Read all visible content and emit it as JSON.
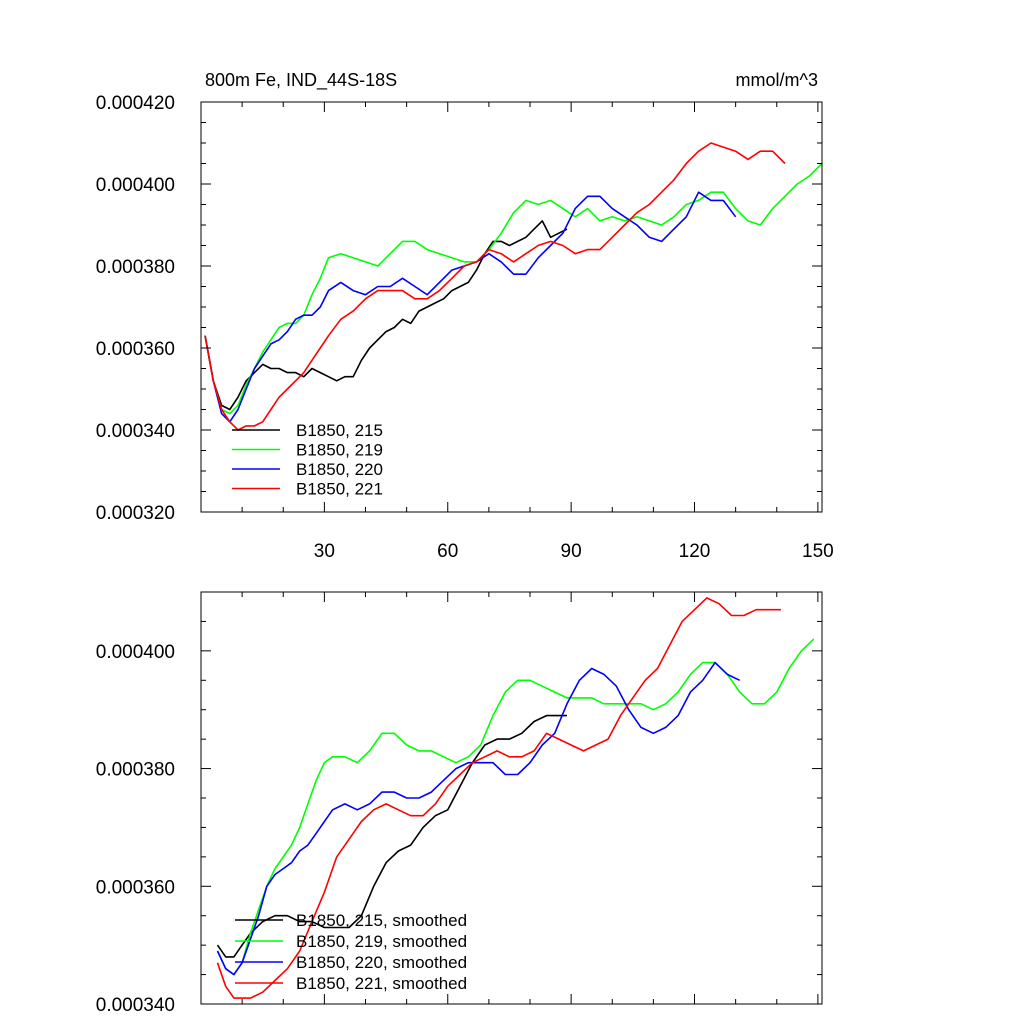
{
  "chart_data": [
    {
      "type": "line",
      "title": "800m Fe, IND_44S-18S",
      "units": "mmol/m^3",
      "xlim": [
        0,
        151
      ],
      "ylim": [
        0.00032,
        0.00042
      ],
      "xticks": [
        30,
        60,
        90,
        120,
        150
      ],
      "xtick_labels": [
        "30",
        "60",
        "90",
        "120",
        "150"
      ],
      "yticks": [
        0.00032,
        0.00034,
        0.00036,
        0.00038,
        0.0004,
        0.00042
      ],
      "ytick_labels": [
        "0.000320",
        "0.000340",
        "0.000360",
        "0.000380",
        "0.000400",
        "0.000420"
      ],
      "grid": false,
      "legend_position": "bottom-left",
      "series": [
        {
          "name": "B1850, 215",
          "color": "#000000",
          "x": [
            1,
            3,
            5,
            7,
            9,
            11,
            13,
            15,
            17,
            19,
            21,
            23,
            25,
            27,
            29,
            31,
            33,
            35,
            37,
            39,
            41,
            43,
            45,
            47,
            49,
            51,
            53,
            55,
            57,
            59,
            61,
            63,
            65,
            67,
            69,
            71,
            73,
            75,
            77,
            79,
            81,
            83,
            85,
            87,
            89
          ],
          "y": [
            0.000363,
            0.000352,
            0.000346,
            0.000345,
            0.000348,
            0.000352,
            0.000354,
            0.000356,
            0.000355,
            0.000355,
            0.000354,
            0.000354,
            0.000353,
            0.000355,
            0.000354,
            0.000353,
            0.000352,
            0.000353,
            0.000353,
            0.000357,
            0.00036,
            0.000362,
            0.000364,
            0.000365,
            0.000367,
            0.000366,
            0.000369,
            0.00037,
            0.000371,
            0.000372,
            0.000374,
            0.000375,
            0.000376,
            0.000379,
            0.000383,
            0.000386,
            0.000386,
            0.000385,
            0.000386,
            0.000387,
            0.000389,
            0.000391,
            0.000387,
            0.000388,
            0.000389
          ]
        },
        {
          "name": "B1850, 219",
          "color": "#00ff00",
          "x": [
            1,
            3,
            5,
            7,
            9,
            11,
            13,
            15,
            17,
            19,
            21,
            23,
            25,
            27,
            29,
            31,
            34,
            37,
            40,
            43,
            46,
            49,
            52,
            55,
            58,
            61,
            64,
            67,
            70,
            73,
            76,
            79,
            82,
            85,
            88,
            91,
            94,
            97,
            100,
            103,
            106,
            109,
            112,
            115,
            118,
            121,
            124,
            127,
            130,
            133,
            136,
            139,
            142,
            145,
            148,
            151
          ],
          "y": [
            0.000363,
            0.000352,
            0.000345,
            0.000344,
            0.000346,
            0.000351,
            0.000355,
            0.000359,
            0.000362,
            0.000365,
            0.000366,
            0.000366,
            0.000368,
            0.000373,
            0.000377,
            0.000382,
            0.000383,
            0.000382,
            0.000381,
            0.00038,
            0.000383,
            0.000386,
            0.000386,
            0.000384,
            0.000383,
            0.000382,
            0.000381,
            0.000381,
            0.000384,
            0.000388,
            0.000393,
            0.000396,
            0.000395,
            0.000396,
            0.000394,
            0.000392,
            0.000394,
            0.000391,
            0.000392,
            0.000391,
            0.000392,
            0.000391,
            0.00039,
            0.000392,
            0.000395,
            0.000396,
            0.000398,
            0.000398,
            0.000394,
            0.000391,
            0.00039,
            0.000394,
            0.000397,
            0.0004,
            0.000402,
            0.000405
          ]
        },
        {
          "name": "B1850, 220",
          "color": "#0000ff",
          "x": [
            1,
            3,
            5,
            7,
            9,
            11,
            13,
            15,
            17,
            19,
            21,
            23,
            25,
            27,
            29,
            31,
            34,
            37,
            40,
            43,
            46,
            49,
            52,
            55,
            58,
            61,
            64,
            67,
            70,
            73,
            76,
            79,
            82,
            85,
            88,
            91,
            94,
            97,
            100,
            103,
            106,
            109,
            112,
            115,
            118,
            121,
            124,
            127,
            130
          ],
          "y": [
            0.000363,
            0.000352,
            0.000344,
            0.000342,
            0.000345,
            0.00035,
            0.000355,
            0.000358,
            0.000361,
            0.000362,
            0.000364,
            0.000367,
            0.000368,
            0.000368,
            0.00037,
            0.000374,
            0.000376,
            0.000374,
            0.000373,
            0.000375,
            0.000375,
            0.000377,
            0.000375,
            0.000373,
            0.000376,
            0.000379,
            0.00038,
            0.000381,
            0.000383,
            0.000381,
            0.000378,
            0.000378,
            0.000382,
            0.000385,
            0.000388,
            0.000394,
            0.000397,
            0.000397,
            0.000394,
            0.000392,
            0.00039,
            0.000387,
            0.000386,
            0.000389,
            0.000392,
            0.000398,
            0.000396,
            0.000396,
            0.000392
          ]
        },
        {
          "name": "B1850, 221",
          "color": "#ff0000",
          "x": [
            1,
            3,
            5,
            7,
            9,
            11,
            13,
            15,
            17,
            19,
            21,
            23,
            25,
            27,
            29,
            31,
            34,
            37,
            40,
            43,
            46,
            49,
            52,
            55,
            58,
            61,
            64,
            67,
            70,
            73,
            76,
            79,
            82,
            85,
            88,
            91,
            94,
            97,
            100,
            103,
            106,
            109,
            112,
            115,
            118,
            121,
            124,
            127,
            130,
            133,
            136,
            139,
            142
          ],
          "y": [
            0.000363,
            0.000352,
            0.000345,
            0.000342,
            0.00034,
            0.000341,
            0.000341,
            0.000342,
            0.000345,
            0.000348,
            0.00035,
            0.000352,
            0.000354,
            0.000357,
            0.00036,
            0.000363,
            0.000367,
            0.000369,
            0.000372,
            0.000374,
            0.000374,
            0.000374,
            0.000372,
            0.000372,
            0.000374,
            0.000377,
            0.00038,
            0.000381,
            0.000384,
            0.000383,
            0.000381,
            0.000383,
            0.000385,
            0.000386,
            0.000385,
            0.000383,
            0.000384,
            0.000384,
            0.000387,
            0.00039,
            0.000393,
            0.000395,
            0.000398,
            0.000401,
            0.000405,
            0.000408,
            0.00041,
            0.000409,
            0.000408,
            0.000406,
            0.000408,
            0.000408,
            0.000405
          ]
        }
      ]
    },
    {
      "type": "line",
      "xlim": [
        0,
        151
      ],
      "ylim": [
        0.00034,
        0.00041
      ],
      "yticks": [
        0.00034,
        0.00036,
        0.00038,
        0.0004
      ],
      "ytick_labels": [
        "0.000340",
        "0.000360",
        "0.000380",
        "0.000400"
      ],
      "xticks": [
        30,
        60,
        90,
        120,
        150
      ],
      "grid": false,
      "legend_position": "bottom-left",
      "series": [
        {
          "name": "B1850, 215, smoothed",
          "color": "#000000",
          "x": [
            4,
            6,
            8,
            10,
            12,
            15,
            18,
            21,
            24,
            27,
            30,
            33,
            36,
            39,
            42,
            45,
            48,
            51,
            54,
            57,
            60,
            63,
            66,
            69,
            72,
            75,
            78,
            81,
            84,
            87,
            89
          ],
          "y": [
            0.00035,
            0.000348,
            0.000348,
            0.00035,
            0.000352,
            0.000354,
            0.000355,
            0.000355,
            0.000354,
            0.000354,
            0.000353,
            0.000353,
            0.000353,
            0.000355,
            0.00036,
            0.000364,
            0.000366,
            0.000367,
            0.00037,
            0.000372,
            0.000373,
            0.000377,
            0.000381,
            0.000384,
            0.000385,
            0.000385,
            0.000386,
            0.000388,
            0.000389,
            0.000389,
            0.000389
          ]
        },
        {
          "name": "B1850, 219, smoothed",
          "color": "#00ff00",
          "x": [
            4,
            6,
            8,
            10,
            12,
            14,
            16,
            18,
            20,
            22,
            24,
            26,
            28,
            30,
            32,
            35,
            38,
            41,
            44,
            47,
            50,
            53,
            56,
            59,
            62,
            65,
            68,
            71,
            74,
            77,
            80,
            83,
            86,
            89,
            92,
            95,
            98,
            101,
            104,
            107,
            110,
            113,
            116,
            119,
            122,
            125,
            128,
            131,
            134,
            137,
            140,
            143,
            146,
            149
          ],
          "y": [
            0.000349,
            0.000346,
            0.000345,
            0.000347,
            0.000352,
            0.000356,
            0.00036,
            0.000363,
            0.000365,
            0.000367,
            0.00037,
            0.000374,
            0.000378,
            0.000381,
            0.000382,
            0.000382,
            0.000381,
            0.000383,
            0.000386,
            0.000386,
            0.000384,
            0.000383,
            0.000383,
            0.000382,
            0.000381,
            0.000382,
            0.000384,
            0.000389,
            0.000393,
            0.000395,
            0.000395,
            0.000394,
            0.000393,
            0.000392,
            0.000392,
            0.000392,
            0.000391,
            0.000391,
            0.000391,
            0.000391,
            0.00039,
            0.000391,
            0.000393,
            0.000396,
            0.000398,
            0.000398,
            0.000396,
            0.000393,
            0.000391,
            0.000391,
            0.000393,
            0.000397,
            0.0004,
            0.000402
          ]
        },
        {
          "name": "B1850, 220, smoothed",
          "color": "#0000ff",
          "x": [
            4,
            6,
            8,
            10,
            12,
            14,
            16,
            18,
            20,
            22,
            24,
            26,
            28,
            30,
            32,
            35,
            38,
            41,
            44,
            47,
            50,
            53,
            56,
            59,
            62,
            65,
            68,
            71,
            74,
            77,
            80,
            83,
            86,
            89,
            92,
            95,
            98,
            101,
            104,
            107,
            110,
            113,
            116,
            119,
            122,
            125,
            128,
            131
          ],
          "y": [
            0.000349,
            0.000346,
            0.000345,
            0.000347,
            0.000351,
            0.000355,
            0.00036,
            0.000362,
            0.000363,
            0.000364,
            0.000366,
            0.000367,
            0.000369,
            0.000371,
            0.000373,
            0.000374,
            0.000373,
            0.000374,
            0.000376,
            0.000376,
            0.000375,
            0.000375,
            0.000376,
            0.000378,
            0.00038,
            0.000381,
            0.000381,
            0.000381,
            0.000379,
            0.000379,
            0.000381,
            0.000384,
            0.000386,
            0.000391,
            0.000395,
            0.000397,
            0.000396,
            0.000394,
            0.00039,
            0.000387,
            0.000386,
            0.000387,
            0.000389,
            0.000393,
            0.000395,
            0.000398,
            0.000396,
            0.000395
          ]
        },
        {
          "name": "B1850, 221, smoothed",
          "color": "#ff0000",
          "x": [
            4,
            6,
            8,
            10,
            12,
            15,
            18,
            21,
            24,
            27,
            30,
            33,
            36,
            39,
            42,
            45,
            48,
            51,
            54,
            57,
            60,
            63,
            66,
            69,
            72,
            75,
            78,
            81,
            84,
            87,
            90,
            93,
            96,
            99,
            102,
            105,
            108,
            111,
            114,
            117,
            120,
            123,
            126,
            129,
            132,
            135,
            138,
            141
          ],
          "y": [
            0.000347,
            0.000343,
            0.000341,
            0.000341,
            0.000341,
            0.000342,
            0.000344,
            0.000346,
            0.000349,
            0.000354,
            0.000359,
            0.000365,
            0.000368,
            0.000371,
            0.000373,
            0.000374,
            0.000373,
            0.000372,
            0.000372,
            0.000374,
            0.000377,
            0.000379,
            0.000381,
            0.000382,
            0.000383,
            0.000382,
            0.000382,
            0.000383,
            0.000386,
            0.000385,
            0.000384,
            0.000383,
            0.000384,
            0.000385,
            0.000389,
            0.000392,
            0.000395,
            0.000397,
            0.000401,
            0.000405,
            0.000407,
            0.000409,
            0.000408,
            0.000406,
            0.000406,
            0.000407,
            0.000407,
            0.000407
          ]
        }
      ]
    }
  ]
}
